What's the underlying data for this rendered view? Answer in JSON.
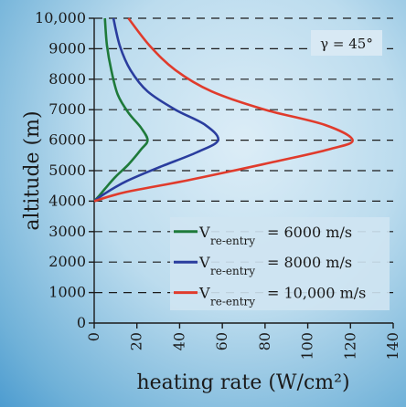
{
  "chart_data": {
    "type": "line",
    "title": "",
    "xlabel": "heating rate (W/cm²)",
    "ylabel": "altitude (m)",
    "xlim": [
      0,
      140
    ],
    "ylim": [
      0,
      10000
    ],
    "xticks": [
      0,
      20,
      40,
      60,
      80,
      100,
      120,
      140
    ],
    "xtick_labels": [
      "0",
      "20",
      "40",
      "60",
      "80",
      "100",
      "120",
      "140"
    ],
    "yticks": [
      0,
      1000,
      2000,
      3000,
      4000,
      5000,
      6000,
      7000,
      8000,
      9000,
      10000
    ],
    "ytick_labels": [
      "0",
      "1000",
      "2000",
      "3000",
      "4000",
      "5000",
      "6000",
      "7000",
      "8000",
      "9000",
      "10,000"
    ],
    "grid": "horizontal dashed",
    "legend_position": "bottom-right",
    "annotation": "γ = 45°",
    "series": [
      {
        "name": "V re-entry = 6000 m/s",
        "legend_main": "V",
        "legend_sub": "re-entry",
        "legend_value": "=    6000 m/s",
        "color": "#1e7a3a",
        "points": [
          [
            0,
            4000
          ],
          [
            2,
            4150
          ],
          [
            5,
            4400
          ],
          [
            10,
            4800
          ],
          [
            16,
            5200
          ],
          [
            22,
            5700
          ],
          [
            25,
            6000
          ],
          [
            22,
            6400
          ],
          [
            16,
            6900
          ],
          [
            11,
            7500
          ],
          [
            8,
            8300
          ],
          [
            6,
            9100
          ],
          [
            5,
            10000
          ]
        ]
      },
      {
        "name": "V re-entry = 8000 m/s",
        "legend_main": "V",
        "legend_sub": "re-entry",
        "legend_value": "=    8000 m/s",
        "color": "#2a3d9e",
        "points": [
          [
            0,
            4000
          ],
          [
            5,
            4250
          ],
          [
            15,
            4650
          ],
          [
            30,
            5100
          ],
          [
            48,
            5600
          ],
          [
            58,
            6000
          ],
          [
            52,
            6500
          ],
          [
            38,
            7000
          ],
          [
            25,
            7600
          ],
          [
            17,
            8300
          ],
          [
            12,
            9100
          ],
          [
            9,
            10000
          ]
        ]
      },
      {
        "name": "V re-entry = 10,000 m/s",
        "legend_main": "V",
        "legend_sub": "re-entry",
        "legend_value": "= 10,000 m/s",
        "color": "#e03b2c",
        "points": [
          [
            0,
            4000
          ],
          [
            15,
            4300
          ],
          [
            45,
            4700
          ],
          [
            85,
            5300
          ],
          [
            110,
            5700
          ],
          [
            121,
            6000
          ],
          [
            108,
            6500
          ],
          [
            80,
            7000
          ],
          [
            55,
            7600
          ],
          [
            38,
            8300
          ],
          [
            26,
            9100
          ],
          [
            16,
            10000
          ]
        ]
      }
    ]
  }
}
